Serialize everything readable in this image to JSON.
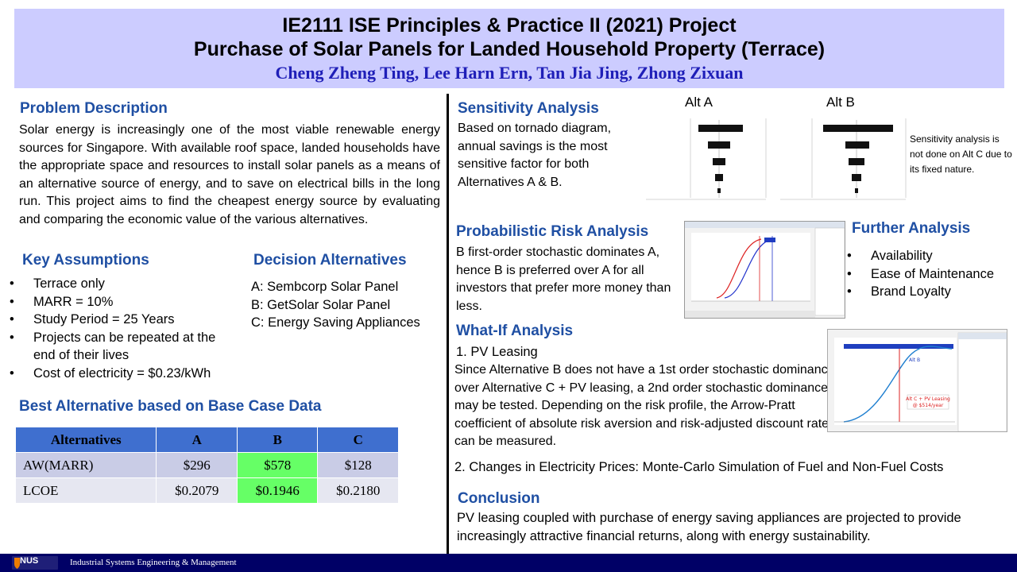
{
  "header": {
    "title_line1": "IE2111 ISE Principles & Practice II (2021) Project",
    "title_line2": "Purchase of Solar Panels for Landed Household Property (Terrace)",
    "authors": "Cheng Zheng Ting, Lee Harn Ern, Tan Jia Jing, Zhong Zixuan"
  },
  "problem": {
    "title": "Problem Description",
    "text": "Solar energy is increasingly one of the most viable renewable energy sources for Singapore. With available roof space, landed households have the appropriate space and resources to install solar panels as a means of an alternative source of energy, and to save on electrical bills in the long run. This project aims to find the cheapest energy source by evaluating and comparing the economic value of the various alternatives."
  },
  "assumptions": {
    "title": "Key Assumptions",
    "items": [
      "Terrace only",
      "MARR = 10%",
      "Study Period = 25 Years",
      "Projects can be repeated at the end of their lives",
      "Cost of electricity = $0.23/kWh"
    ]
  },
  "decision": {
    "title": "Decision Alternatives",
    "items": [
      "A: Sembcorp Solar Panel",
      "B: GetSolar Solar Panel",
      "C: Energy Saving Appliances"
    ]
  },
  "best": {
    "title": "Best Alternative based on Base Case Data",
    "headers": [
      "Alternatives",
      "A",
      "B",
      "C"
    ],
    "rows": [
      [
        "AW(MARR)",
        "$296",
        "$578",
        "$128"
      ],
      [
        "LCOE",
        "$0.2079",
        "$0.1946",
        "$0.2180"
      ]
    ]
  },
  "sensitivity": {
    "title": "Sensitivity Analysis",
    "text": "Based on tornado diagram, annual savings is the most sensitive factor for both Alternatives A & B.",
    "alt_a": "Alt A",
    "alt_b": "Alt B",
    "note": "Sensitivity analysis is not done on Alt C due to its fixed nature."
  },
  "risk": {
    "title": "Probabilistic Risk Analysis",
    "text": "B first-order stochastic dominates A, hence B is preferred over A for all investors that prefer more money than less."
  },
  "further": {
    "title": "Further Analysis",
    "items": [
      "Availability",
      "Ease of Maintenance",
      "Brand Loyalty"
    ]
  },
  "whatif": {
    "title": "What-If Analysis",
    "item1_title": "1. PV Leasing",
    "item1_text": "Since Alternative B does not have a 1st order stochastic dominance over Alternative C + PV leasing, a 2nd order stochastic dominance may be tested. Depending on the risk profile, the Arrow-Pratt coefficient of absolute risk aversion and risk-adjusted discount rate can be measured.",
    "item2": "2. Changes in Electricity Prices: Monte-Carlo Simulation of Fuel and Non-Fuel Costs"
  },
  "conclusion": {
    "title": "Conclusion",
    "text": "PV leasing coupled with purchase of energy saving appliances are projected to provide increasingly attractive financial returns, along with energy sustainability."
  },
  "footer": {
    "logo": "NUS",
    "dept": "Industrial Systems Engineering & Management"
  },
  "colors": {
    "header_bg": "#ccccff",
    "section_title": "#1f4fa3",
    "authors": "#1f1fb8",
    "table_header": "#3f6fcf",
    "highlight": "#66ff66",
    "footer_bg": "#000066"
  }
}
